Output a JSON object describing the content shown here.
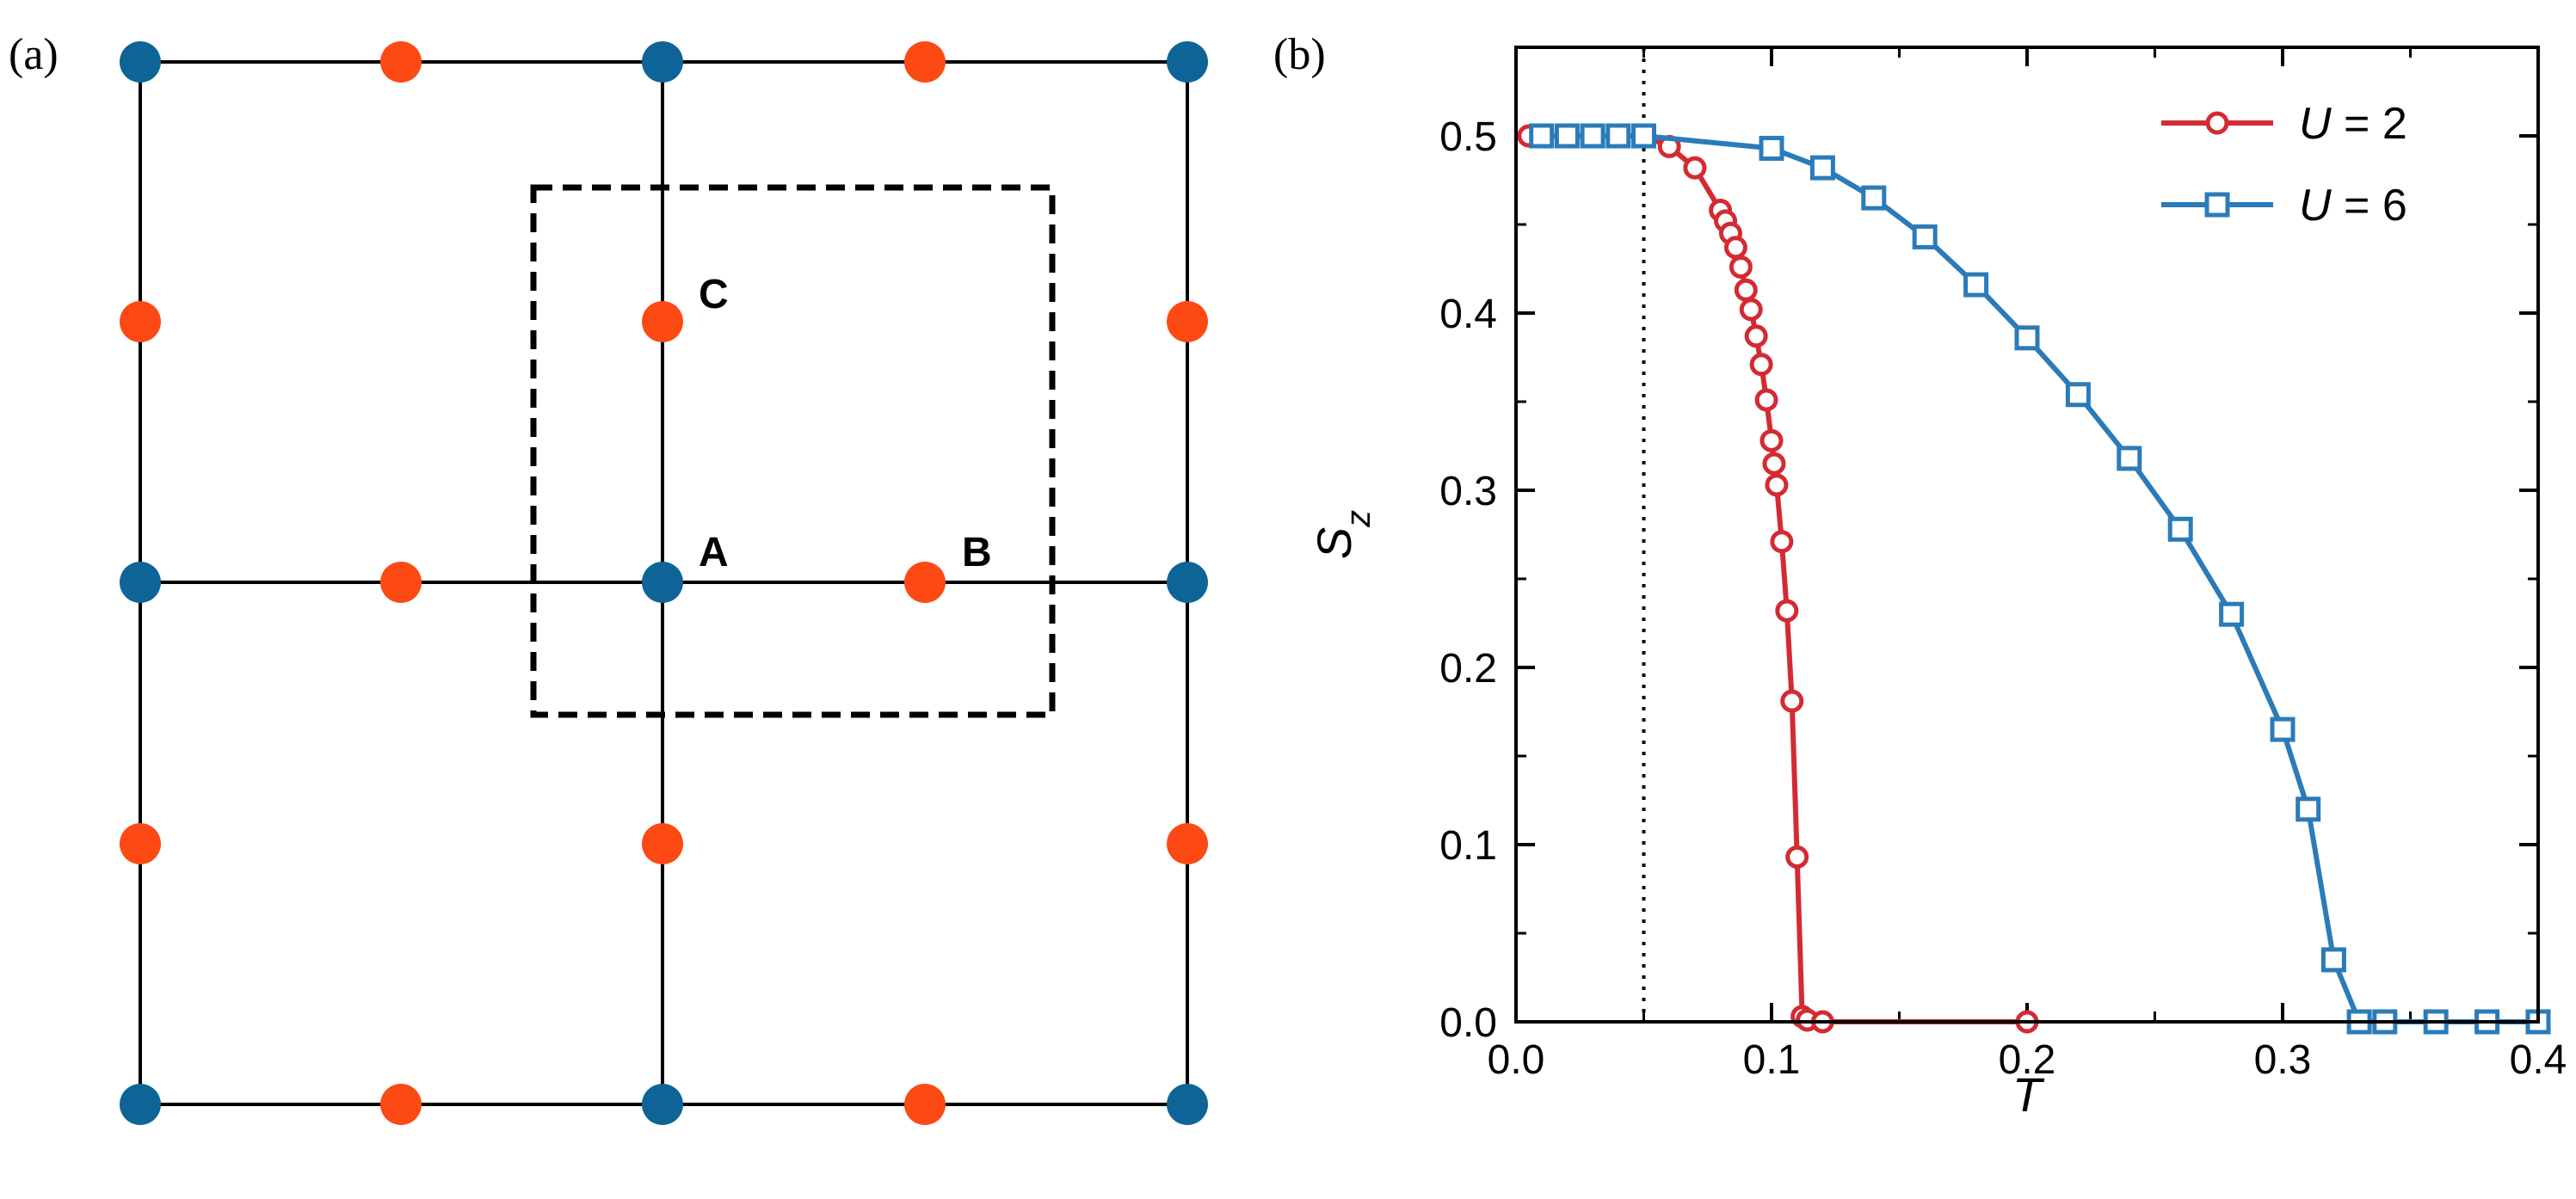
{
  "panel_a": {
    "label": "(a)",
    "lattice": {
      "site_colors": {
        "A_type": "#0e6496",
        "B_C_type": "#fd4914"
      },
      "site_labels": [
        "A",
        "B",
        "C"
      ],
      "unit_cell": "dashed square enclosing sites A, B, C"
    }
  },
  "panel_b": {
    "label": "(b)"
  },
  "chart_data": {
    "type": "line",
    "title": "",
    "xlabel": "T",
    "ylabel": "S_z",
    "xlim": [
      0.0,
      0.4
    ],
    "ylim": [
      0.0,
      0.55
    ],
    "xticks": [
      0.0,
      0.1,
      0.2,
      0.3,
      0.4
    ],
    "xtick_labels": [
      "0.0",
      "0.1",
      "0.2",
      "0.3",
      "0.4"
    ],
    "yticks": [
      0.0,
      0.1,
      0.2,
      0.3,
      0.4,
      0.5
    ],
    "ytick_labels": [
      "0.0",
      "0.1",
      "0.2",
      "0.3",
      "0.4",
      "0.5"
    ],
    "vertical_reference_line": {
      "x": 0.05,
      "style": "dotted"
    },
    "legend_position": "top-right",
    "grid": false,
    "series": [
      {
        "name": "U = 2",
        "legend_parts": [
          "U",
          " = 2"
        ],
        "color": "#d42a32",
        "marker": "circle",
        "x": [
          0.005,
          0.01,
          0.02,
          0.03,
          0.04,
          0.05,
          0.06,
          0.07,
          0.08,
          0.082,
          0.084,
          0.086,
          0.088,
          0.09,
          0.092,
          0.094,
          0.096,
          0.098,
          0.1,
          0.101,
          0.102,
          0.104,
          0.106,
          0.108,
          0.11,
          0.112,
          0.114,
          0.12,
          0.2
        ],
        "y": [
          0.5,
          0.5,
          0.5,
          0.5,
          0.5,
          0.5,
          0.494,
          0.482,
          0.458,
          0.452,
          0.445,
          0.437,
          0.426,
          0.413,
          0.402,
          0.387,
          0.371,
          0.351,
          0.328,
          0.315,
          0.303,
          0.271,
          0.232,
          0.181,
          0.093,
          0.003,
          0.001,
          0.0,
          0.0
        ]
      },
      {
        "name": "U = 6",
        "legend_parts": [
          "U",
          " = 6"
        ],
        "color": "#2b7bb9",
        "marker": "square",
        "x": [
          0.01,
          0.02,
          0.03,
          0.04,
          0.05,
          0.1,
          0.12,
          0.14,
          0.16,
          0.18,
          0.2,
          0.22,
          0.24,
          0.26,
          0.28,
          0.3,
          0.31,
          0.32,
          0.33,
          0.34,
          0.36,
          0.38,
          0.4
        ],
        "y": [
          0.5,
          0.5,
          0.5,
          0.5,
          0.5,
          0.493,
          0.482,
          0.465,
          0.443,
          0.416,
          0.386,
          0.354,
          0.318,
          0.278,
          0.23,
          0.165,
          0.12,
          0.035,
          0.0,
          0.0,
          0.0,
          0.0,
          0.0
        ]
      }
    ]
  }
}
